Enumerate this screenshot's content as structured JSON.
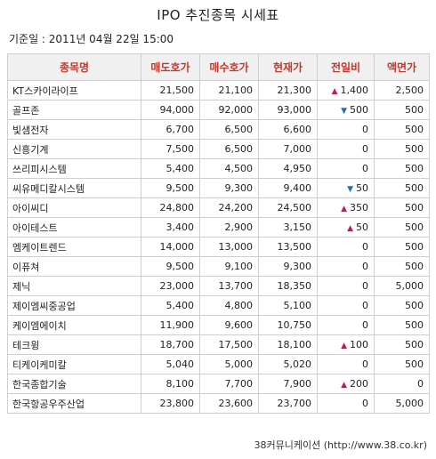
{
  "title": "IPO 추진종목 시세표",
  "base_date": "기준일 : 2011년 04월 22일 15:00",
  "columns": [
    "종목명",
    "매도호가",
    "매수호가",
    "현재가",
    "전일비",
    "액면가"
  ],
  "rows": [
    {
      "name": "KT스카이라이프",
      "ask": "21,500",
      "bid": "21,100",
      "price": "21,300",
      "change": "1,400",
      "dir": "up",
      "par": "2,500"
    },
    {
      "name": "골프존",
      "ask": "94,000",
      "bid": "92,000",
      "price": "93,000",
      "change": "500",
      "dir": "down",
      "par": "500"
    },
    {
      "name": "빛샘전자",
      "ask": "6,700",
      "bid": "6,500",
      "price": "6,600",
      "change": "0",
      "dir": "",
      "par": "500"
    },
    {
      "name": "신흥기계",
      "ask": "7,500",
      "bid": "6,500",
      "price": "7,000",
      "change": "0",
      "dir": "",
      "par": "500"
    },
    {
      "name": "쓰리피시스템",
      "ask": "5,400",
      "bid": "4,500",
      "price": "4,950",
      "change": "0",
      "dir": "",
      "par": "500"
    },
    {
      "name": "씨유메디칼시스템",
      "ask": "9,500",
      "bid": "9,300",
      "price": "9,400",
      "change": "50",
      "dir": "down",
      "par": "500"
    },
    {
      "name": "아이씨디",
      "ask": "24,800",
      "bid": "24,200",
      "price": "24,500",
      "change": "350",
      "dir": "up",
      "par": "500"
    },
    {
      "name": "아이테스트",
      "ask": "3,400",
      "bid": "2,900",
      "price": "3,150",
      "change": "50",
      "dir": "up",
      "par": "500"
    },
    {
      "name": "엠케이트렌드",
      "ask": "14,000",
      "bid": "13,000",
      "price": "13,500",
      "change": "0",
      "dir": "",
      "par": "500"
    },
    {
      "name": "이퓨쳐",
      "ask": "9,500",
      "bid": "9,100",
      "price": "9,300",
      "change": "0",
      "dir": "",
      "par": "500"
    },
    {
      "name": "제닉",
      "ask": "23,000",
      "bid": "13,700",
      "price": "18,350",
      "change": "0",
      "dir": "",
      "par": "5,000"
    },
    {
      "name": "제이엠씨중공업",
      "ask": "5,400",
      "bid": "4,800",
      "price": "5,100",
      "change": "0",
      "dir": "",
      "par": "500"
    },
    {
      "name": "케이엠에이치",
      "ask": "11,900",
      "bid": "9,600",
      "price": "10,750",
      "change": "0",
      "dir": "",
      "par": "500"
    },
    {
      "name": "테크윙",
      "ask": "18,700",
      "bid": "17,500",
      "price": "18,100",
      "change": "100",
      "dir": "up",
      "par": "500"
    },
    {
      "name": "티케이케미칼",
      "ask": "5,040",
      "bid": "5,000",
      "price": "5,020",
      "change": "0",
      "dir": "",
      "par": "500"
    },
    {
      "name": "한국종합기술",
      "ask": "8,100",
      "bid": "7,700",
      "price": "7,900",
      "change": "200",
      "dir": "up",
      "par": "0"
    },
    {
      "name": "한국항공우주산업",
      "ask": "23,800",
      "bid": "23,600",
      "price": "23,700",
      "change": "0",
      "dir": "",
      "par": "5,000"
    }
  ],
  "source": "38커뮤니케이션 (http://www.38.co.kr)"
}
